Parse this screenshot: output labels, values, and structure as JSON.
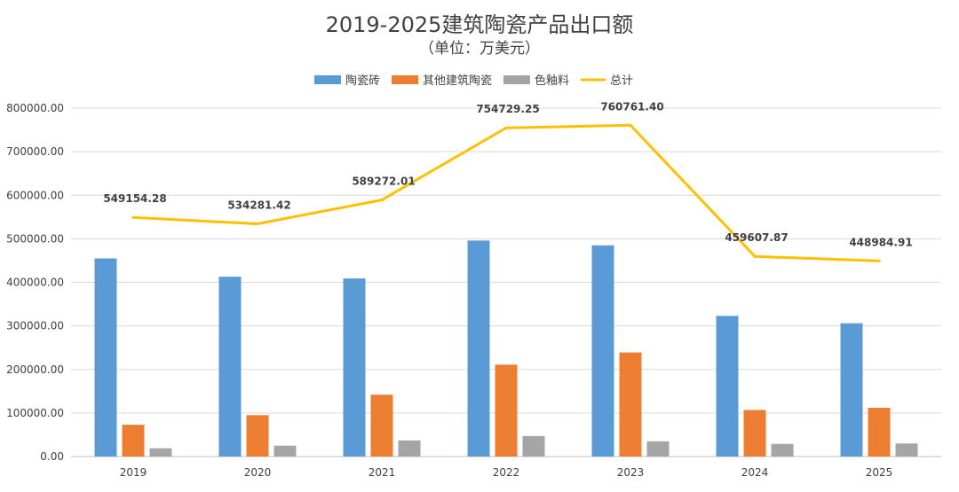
{
  "chart_data": {
    "type": "bar",
    "title": "2019-2025建筑陶瓷产品出口额",
    "subtitle": "（单位：万美元）",
    "categories": [
      "2019",
      "2020",
      "2021",
      "2022",
      "2023",
      "2024",
      "2025"
    ],
    "series": [
      {
        "name": "陶瓷砖",
        "type": "bar",
        "color": "#5B9BD5",
        "values": [
          455000,
          413000,
          409000,
          496000,
          485000,
          323000,
          306000
        ]
      },
      {
        "name": "其他建筑陶瓷",
        "type": "bar",
        "color": "#ED7D31",
        "values": [
          73000,
          95000,
          142000,
          211000,
          239000,
          107000,
          112000
        ]
      },
      {
        "name": "色釉料",
        "type": "bar",
        "color": "#A5A5A5",
        "values": [
          19000,
          25000,
          37000,
          47000,
          35000,
          29000,
          30000
        ]
      },
      {
        "name": "总计",
        "type": "line",
        "color": "#FFC000",
        "values": [
          549154.28,
          534281.42,
          589272.01,
          754729.25,
          760761.4,
          459607.87,
          448984.91
        ],
        "labels": [
          "549154.28",
          "534281.42",
          "589272.01",
          "754729.25",
          "760761.40",
          "459607.87",
          "448984.91"
        ]
      }
    ],
    "yticks": [
      "0.00",
      "100000.00",
      "200000.00",
      "300000.00",
      "400000.00",
      "500000.00",
      "600000.00",
      "700000.00",
      "800000.00"
    ],
    "ylim": [
      0,
      800000
    ],
    "grid": true,
    "legend": "top-center",
    "xlabel": "",
    "ylabel": ""
  }
}
